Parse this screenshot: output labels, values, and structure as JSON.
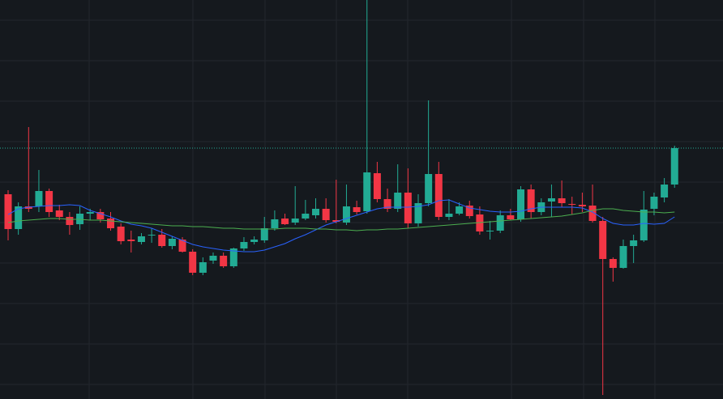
{
  "chart_data": {
    "type": "candlestick",
    "open": [
      253,
      210,
      238,
      238,
      257,
      233,
      225,
      216,
      229,
      231,
      223,
      213,
      197,
      194,
      202,
      203,
      189,
      197,
      182,
      156,
      171,
      177,
      164,
      186,
      194,
      196,
      211,
      223,
      218,
      223,
      227,
      235,
      221,
      218,
      237,
      232,
      279,
      247,
      235,
      255,
      217,
      242,
      278,
      225,
      229,
      239,
      228,
      207,
      208,
      227,
      222,
      259,
      231,
      244,
      248,
      241,
      240,
      239,
      220,
      173,
      162,
      189,
      196,
      235,
      249,
      265
    ],
    "high": [
      258,
      243,
      336,
      283,
      260,
      240,
      231,
      238,
      235,
      235,
      231,
      217,
      208,
      205,
      211,
      210,
      201,
      200,
      185,
      175,
      181,
      181,
      187,
      200,
      201,
      225,
      233,
      229,
      263,
      246,
      248,
      248,
      271,
      265,
      245,
      493,
      293,
      260,
      290,
      285,
      253,
      369,
      293,
      247,
      243,
      245,
      238,
      220,
      233,
      235,
      263,
      265,
      248,
      265,
      270,
      250,
      255,
      265,
      225,
      175,
      197,
      203,
      257,
      255,
      273,
      313
    ],
    "low": [
      196,
      203,
      231,
      231,
      225,
      221,
      203,
      209,
      221,
      218,
      208,
      191,
      181,
      191,
      193,
      187,
      185,
      181,
      153,
      153,
      167,
      162,
      162,
      183,
      191,
      193,
      208,
      215,
      215,
      221,
      223,
      218,
      217,
      215,
      228,
      229,
      243,
      231,
      231,
      211,
      213,
      238,
      221,
      221,
      227,
      223,
      203,
      197,
      205,
      221,
      219,
      223,
      227,
      225,
      237,
      228,
      231,
      218,
      5,
      145,
      161,
      168,
      194,
      227,
      243,
      261
    ],
    "close": [
      210,
      238,
      235,
      257,
      231,
      225,
      215,
      229,
      231,
      222,
      211,
      195,
      195,
      201,
      203,
      189,
      198,
      182,
      156,
      169,
      177,
      164,
      186,
      194,
      197,
      211,
      222,
      216,
      223,
      229,
      235,
      221,
      219,
      238,
      231,
      280,
      247,
      235,
      255,
      217,
      242,
      278,
      225,
      229,
      238,
      226,
      207,
      208,
      227,
      222,
      259,
      231,
      243,
      248,
      242,
      240,
      238,
      220,
      173,
      162,
      189,
      196,
      234,
      250,
      265,
      310
    ],
    "up_color": "#22ab94",
    "down_color": "#f23645",
    "series": [
      {
        "color": "#2962ff",
        "values": [
          228,
          235,
          237,
          238,
          239,
          239,
          240,
          239,
          233,
          229,
          225,
          220,
          216,
          214,
          211,
          206,
          201,
          196,
          191,
          188,
          186,
          184,
          183,
          182,
          182,
          184,
          188,
          192,
          198,
          203,
          209,
          215,
          219,
          223,
          227,
          231,
          235,
          237,
          237,
          237,
          238,
          240,
          245,
          246,
          241,
          236,
          234,
          232,
          231,
          231,
          232,
          235,
          237,
          237,
          237,
          237,
          236,
          231,
          223,
          217,
          215,
          215,
          217,
          216,
          217,
          225
        ]
      },
      {
        "color": "#4caf50",
        "values": [
          218,
          220,
          221,
          222,
          223,
          223,
          222,
          222,
          221,
          221,
          220,
          219,
          218,
          217,
          216,
          215,
          214,
          214,
          213,
          213,
          212,
          211,
          211,
          210,
          210,
          210,
          210,
          211,
          211,
          211,
          210,
          210,
          209,
          209,
          208,
          209,
          209,
          210,
          210,
          211,
          212,
          213,
          214,
          215,
          216,
          217,
          218,
          219,
          220,
          221,
          222,
          223,
          224,
          225,
          226,
          228,
          230,
          233,
          235,
          235,
          233,
          232,
          231,
          231,
          230,
          231
        ]
      }
    ],
    "last_price": 310,
    "ylim": [
      0,
      493
    ],
    "yticks": [
      18,
      68,
      118,
      168,
      218,
      268,
      318,
      368,
      418,
      468
    ],
    "grid": true
  }
}
